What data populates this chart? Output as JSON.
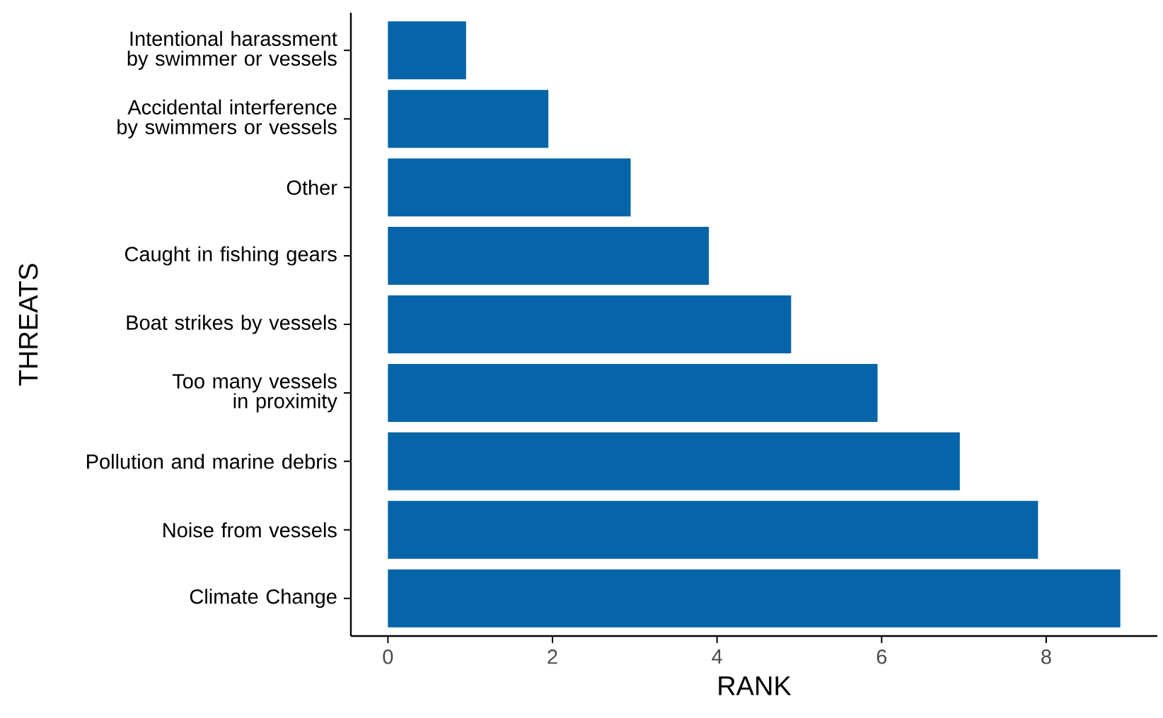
{
  "chart_data": {
    "type": "bar",
    "orientation": "horizontal",
    "xlabel": "RANK",
    "ylabel": "THREATS",
    "categories": [
      "Intentional harassment by swimmer or vessels",
      "Accidental interference by swimmers or vessels",
      "Other",
      "Caught in fishing gears",
      "Boat strikes by vessels",
      "Too many vessels in proximity",
      "Pollution and marine debris",
      "Noise from vessels",
      "Climate Change"
    ],
    "values": [
      0.95,
      1.95,
      2.95,
      3.9,
      4.9,
      5.95,
      6.95,
      7.9,
      8.9
    ],
    "color": "#0565a8",
    "xlim": [
      -0.45,
      9.35
    ],
    "xticks": [
      0,
      2,
      4,
      6,
      8
    ]
  }
}
